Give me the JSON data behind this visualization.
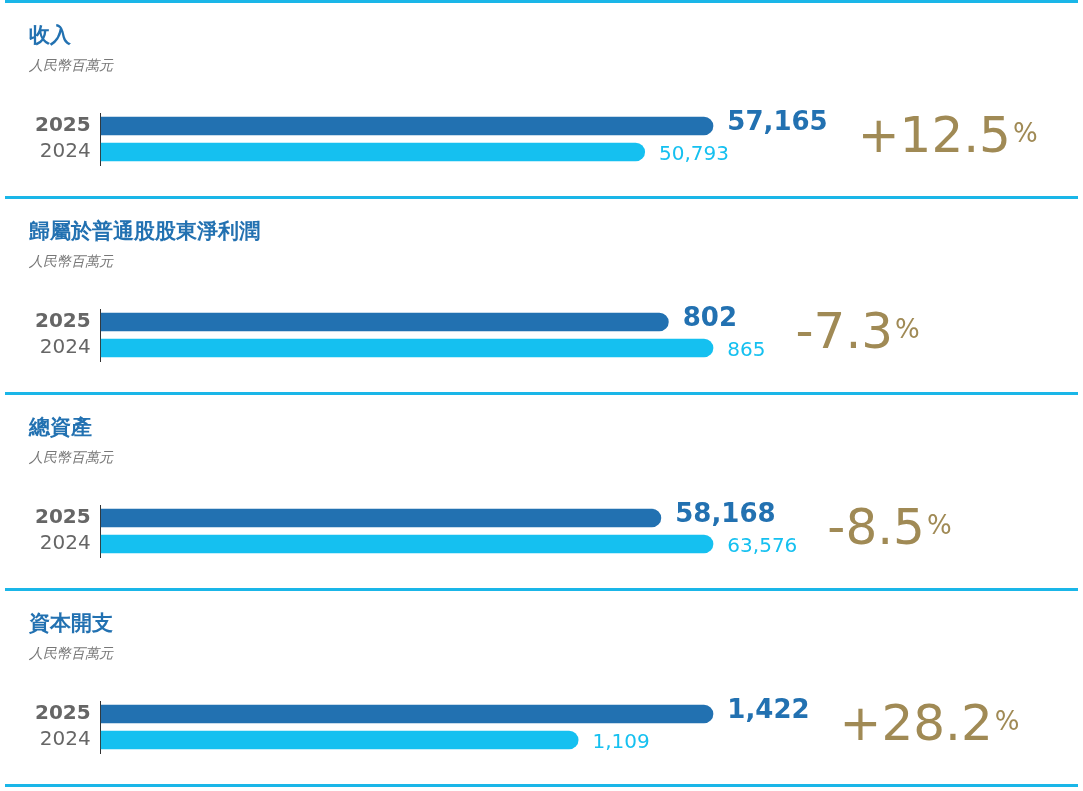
{
  "chart_data": [
    {
      "type": "bar",
      "orientation": "horizontal",
      "title": "收入",
      "subtitle": "人民幣百萬元",
      "categories": [
        "2025",
        "2024"
      ],
      "values": [
        57165,
        50793
      ],
      "colors": [
        "#2271b1",
        "#15c0f0"
      ],
      "value_labels": [
        "57,165",
        "50,793"
      ],
      "annotations": [
        "+12.5%"
      ]
    },
    {
      "type": "bar",
      "orientation": "horizontal",
      "title": "歸屬於普通股股東淨利潤",
      "subtitle": "人民幣百萬元",
      "categories": [
        "2025",
        "2024"
      ],
      "values": [
        802,
        865
      ],
      "colors": [
        "#2271b1",
        "#15c0f0"
      ],
      "value_labels": [
        "802",
        "865"
      ],
      "annotations": [
        "-7.3%"
      ]
    },
    {
      "type": "bar",
      "orientation": "horizontal",
      "title": "總資產",
      "subtitle": "人民幣百萬元",
      "categories": [
        "2025",
        "2024"
      ],
      "values": [
        58168,
        63576
      ],
      "colors": [
        "#2271b1",
        "#15c0f0"
      ],
      "value_labels": [
        "58,168",
        "63,576"
      ],
      "annotations": [
        "-8.5%"
      ]
    },
    {
      "type": "bar",
      "orientation": "horizontal",
      "title": "資本開支",
      "subtitle": "人民幣百萬元",
      "categories": [
        "2025",
        "2024"
      ],
      "values": [
        1422,
        1109
      ],
      "colors": [
        "#2271b1",
        "#15c0f0"
      ],
      "value_labels": [
        "1,422",
        "1,109"
      ],
      "annotations": [
        "+28.2%"
      ]
    }
  ]
}
